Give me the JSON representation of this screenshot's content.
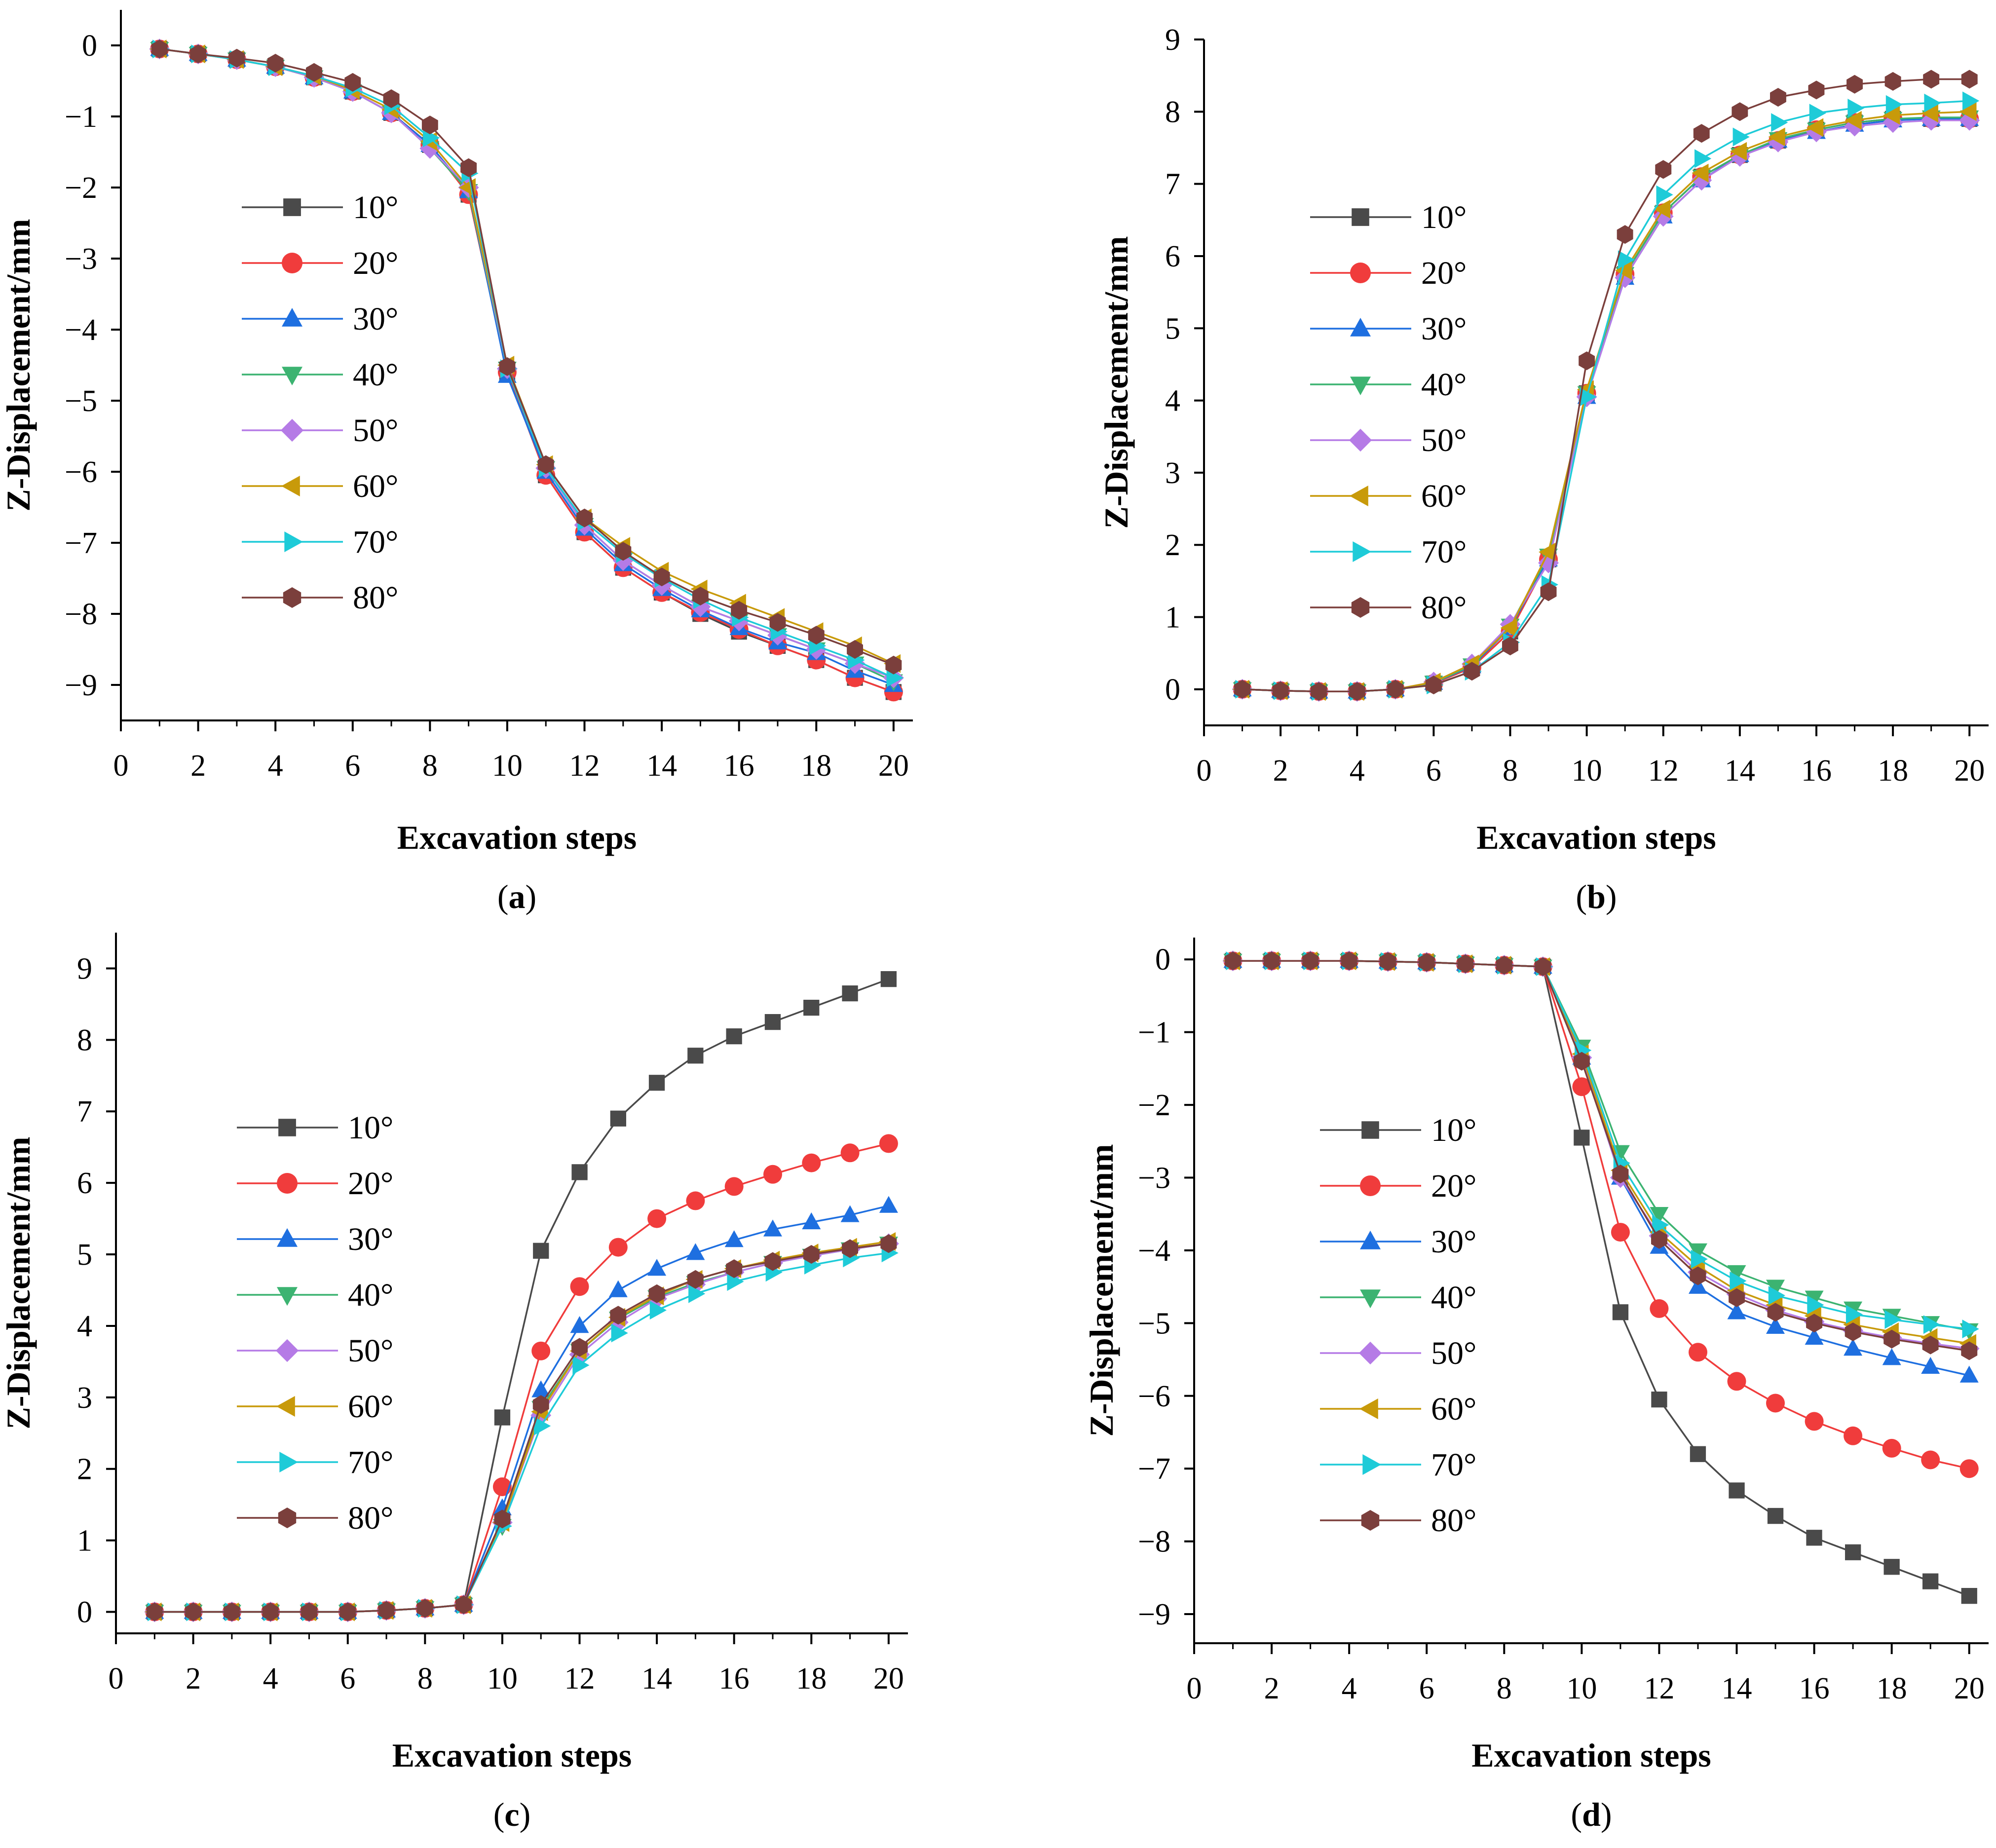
{
  "chart_data": [
    {
      "type": "line",
      "panel_label": "(a)",
      "panel_letter": "a",
      "xlabel": "Excavation steps",
      "ylabel": "Z-Displacement/mm",
      "xlim": [
        0,
        20.5
      ],
      "ylim": [
        -9.5,
        0.5
      ],
      "xticks": [
        0,
        2,
        4,
        6,
        8,
        10,
        12,
        14,
        16,
        18,
        20
      ],
      "yticks": [
        0,
        -1,
        -2,
        -3,
        -4,
        -5,
        -6,
        -7,
        -8,
        -9
      ],
      "ytick_labels": [
        "0",
        "−1",
        "−2",
        "−3",
        "−4",
        "−5",
        "−6",
        "−7",
        "−8",
        "−9"
      ],
      "legend_position": "left",
      "x": [
        1,
        2,
        3,
        4,
        5,
        6,
        7,
        8,
        9,
        10,
        11,
        12,
        13,
        14,
        15,
        16,
        17,
        18,
        19,
        20
      ],
      "series": [
        {
          "name": "10°",
          "values": [
            -0.05,
            -0.12,
            -0.2,
            -0.3,
            -0.45,
            -0.65,
            -0.95,
            -1.4,
            -2.1,
            -4.6,
            -6.05,
            -6.85,
            -7.35,
            -7.7,
            -8.0,
            -8.25,
            -8.45,
            -8.65,
            -8.9,
            -9.1
          ]
        },
        {
          "name": "20°",
          "values": [
            -0.05,
            -0.12,
            -0.2,
            -0.3,
            -0.45,
            -0.65,
            -0.95,
            -1.4,
            -2.1,
            -4.6,
            -6.05,
            -6.85,
            -7.35,
            -7.7,
            -7.98,
            -8.22,
            -8.45,
            -8.65,
            -8.9,
            -9.1
          ]
        },
        {
          "name": "30°",
          "values": [
            -0.05,
            -0.12,
            -0.2,
            -0.3,
            -0.45,
            -0.65,
            -0.95,
            -1.4,
            -2.05,
            -4.65,
            -6.0,
            -6.8,
            -7.3,
            -7.65,
            -7.95,
            -8.2,
            -8.4,
            -8.55,
            -8.8,
            -9.0
          ]
        },
        {
          "name": "40°",
          "values": [
            -0.05,
            -0.12,
            -0.2,
            -0.3,
            -0.45,
            -0.65,
            -0.95,
            -1.45,
            -2.05,
            -4.55,
            -5.95,
            -6.75,
            -7.25,
            -7.6,
            -7.9,
            -8.1,
            -8.3,
            -8.5,
            -8.7,
            -8.95
          ]
        },
        {
          "name": "50°",
          "values": [
            -0.05,
            -0.12,
            -0.2,
            -0.3,
            -0.45,
            -0.65,
            -0.95,
            -1.45,
            -2.0,
            -4.55,
            -5.95,
            -6.75,
            -7.25,
            -7.6,
            -7.9,
            -8.1,
            -8.3,
            -8.5,
            -8.7,
            -8.9
          ]
        },
        {
          "name": "60°",
          "values": [
            -0.05,
            -0.12,
            -0.2,
            -0.3,
            -0.43,
            -0.63,
            -0.9,
            -1.35,
            -2.0,
            -4.5,
            -5.9,
            -6.65,
            -7.05,
            -7.4,
            -7.65,
            -7.85,
            -8.05,
            -8.25,
            -8.45,
            -8.7
          ]
        },
        {
          "name": "70°",
          "values": [
            -0.05,
            -0.12,
            -0.2,
            -0.3,
            -0.43,
            -0.6,
            -0.85,
            -1.3,
            -1.8,
            -4.55,
            -5.95,
            -6.7,
            -7.15,
            -7.5,
            -7.8,
            -8.05,
            -8.25,
            -8.45,
            -8.65,
            -8.9
          ]
        },
        {
          "name": "80°",
          "values": [
            -0.05,
            -0.12,
            -0.18,
            -0.25,
            -0.38,
            -0.52,
            -0.75,
            -1.12,
            -1.72,
            -4.52,
            -5.9,
            -6.65,
            -7.12,
            -7.48,
            -7.75,
            -7.95,
            -8.12,
            -8.3,
            -8.5,
            -8.72
          ]
        }
      ]
    },
    {
      "type": "line",
      "panel_label": "(b)",
      "panel_letter": "b",
      "xlabel": "Excavation steps",
      "ylabel": "Z-Displacement/mm",
      "xlim": [
        0,
        20.5
      ],
      "ylim": [
        -0.5,
        9
      ],
      "xticks": [
        0,
        2,
        4,
        6,
        8,
        10,
        12,
        14,
        16,
        18,
        20
      ],
      "yticks": [
        0,
        1,
        2,
        3,
        4,
        5,
        6,
        7,
        8,
        9
      ],
      "ytick_labels": [
        "0",
        "1",
        "2",
        "3",
        "4",
        "5",
        "6",
        "7",
        "8",
        "9"
      ],
      "legend_position": "left",
      "x": [
        1,
        2,
        3,
        4,
        5,
        6,
        7,
        8,
        9,
        10,
        11,
        12,
        13,
        14,
        15,
        16,
        17,
        18,
        19,
        20
      ],
      "series": [
        {
          "name": "10°",
          "values": [
            0,
            -0.02,
            -0.03,
            -0.03,
            0.0,
            0.08,
            0.3,
            0.8,
            1.8,
            4.1,
            5.75,
            6.6,
            7.1,
            7.4,
            7.6,
            7.75,
            7.85,
            7.9,
            7.9,
            7.9
          ]
        },
        {
          "name": "20°",
          "values": [
            0,
            -0.02,
            -0.03,
            -0.03,
            0.0,
            0.08,
            0.3,
            0.8,
            1.8,
            4.1,
            5.75,
            6.6,
            7.1,
            7.4,
            7.6,
            7.75,
            7.85,
            7.9,
            7.9,
            7.9
          ]
        },
        {
          "name": "30°",
          "values": [
            0,
            -0.02,
            -0.03,
            -0.03,
            0.0,
            0.09,
            0.32,
            0.85,
            1.8,
            4.05,
            5.7,
            6.55,
            7.05,
            7.4,
            7.6,
            7.72,
            7.82,
            7.88,
            7.9,
            7.9
          ]
        },
        {
          "name": "40°",
          "values": [
            0,
            -0.02,
            -0.03,
            -0.03,
            0.0,
            0.09,
            0.33,
            0.88,
            1.85,
            4.1,
            5.75,
            6.6,
            7.1,
            7.4,
            7.62,
            7.75,
            7.85,
            7.9,
            7.92,
            7.92
          ]
        },
        {
          "name": "50°",
          "values": [
            0,
            -0.02,
            -0.03,
            -0.03,
            0.0,
            0.1,
            0.35,
            0.9,
            1.75,
            4.05,
            5.7,
            6.55,
            7.05,
            7.38,
            7.58,
            7.72,
            7.8,
            7.85,
            7.88,
            7.88
          ]
        },
        {
          "name": "60°",
          "values": [
            0,
            -0.02,
            -0.03,
            -0.03,
            0.0,
            0.1,
            0.35,
            0.85,
            1.9,
            4.15,
            5.8,
            6.65,
            7.15,
            7.45,
            7.65,
            7.78,
            7.88,
            7.95,
            7.98,
            8.0
          ]
        },
        {
          "name": "70°",
          "values": [
            0,
            -0.02,
            -0.03,
            -0.03,
            0.0,
            0.06,
            0.25,
            0.65,
            1.45,
            4.05,
            5.95,
            6.85,
            7.35,
            7.65,
            7.85,
            7.98,
            8.05,
            8.1,
            8.12,
            8.15
          ]
        },
        {
          "name": "80°",
          "values": [
            0,
            -0.02,
            -0.03,
            -0.03,
            0.0,
            0.06,
            0.25,
            0.6,
            1.35,
            4.55,
            6.3,
            7.2,
            7.7,
            8.0,
            8.2,
            8.3,
            8.38,
            8.42,
            8.45,
            8.45
          ]
        }
      ]
    },
    {
      "type": "line",
      "panel_label": "(c)",
      "panel_letter": "c",
      "xlabel": "Excavation steps",
      "ylabel": "Z-Displacement/mm",
      "xlim": [
        0,
        20.5
      ],
      "ylim": [
        -0.3,
        9.5
      ],
      "xticks": [
        0,
        2,
        4,
        6,
        8,
        10,
        12,
        14,
        16,
        18,
        20
      ],
      "yticks": [
        0,
        1,
        2,
        3,
        4,
        5,
        6,
        7,
        8,
        9
      ],
      "ytick_labels": [
        "0",
        "1",
        "2",
        "3",
        "4",
        "5",
        "6",
        "7",
        "8",
        "9"
      ],
      "legend_position": "left",
      "x": [
        1,
        2,
        3,
        4,
        5,
        6,
        7,
        8,
        9,
        10,
        11,
        12,
        13,
        14,
        15,
        16,
        17,
        18,
        19,
        20
      ],
      "series": [
        {
          "name": "10°",
          "values": [
            0,
            0,
            0,
            0,
            0,
            0,
            0.02,
            0.05,
            0.1,
            2.72,
            5.05,
            6.15,
            6.9,
            7.4,
            7.78,
            8.05,
            8.25,
            8.45,
            8.65,
            8.85
          ]
        },
        {
          "name": "20°",
          "values": [
            0,
            0,
            0,
            0,
            0,
            0,
            0.02,
            0.05,
            0.1,
            1.75,
            3.65,
            4.55,
            5.1,
            5.5,
            5.75,
            5.95,
            6.12,
            6.28,
            6.42,
            6.55
          ]
        },
        {
          "name": "30°",
          "values": [
            0,
            0,
            0,
            0,
            0,
            0,
            0.02,
            0.05,
            0.1,
            1.45,
            3.1,
            4.0,
            4.5,
            4.8,
            5.02,
            5.2,
            5.35,
            5.45,
            5.55,
            5.68
          ]
        },
        {
          "name": "40°",
          "values": [
            0,
            0,
            0,
            0,
            0,
            0,
            0.02,
            0.05,
            0.1,
            1.2,
            2.85,
            3.65,
            4.1,
            4.4,
            4.6,
            4.75,
            4.88,
            4.98,
            5.07,
            5.15
          ]
        },
        {
          "name": "50°",
          "values": [
            0,
            0,
            0,
            0,
            0,
            0,
            0.02,
            0.05,
            0.1,
            1.25,
            2.75,
            3.6,
            4.05,
            4.38,
            4.58,
            4.75,
            4.88,
            4.98,
            5.07,
            5.15
          ]
        },
        {
          "name": "60°",
          "values": [
            0,
            0,
            0,
            0,
            0,
            0,
            0.02,
            0.05,
            0.1,
            1.25,
            2.8,
            3.65,
            4.12,
            4.42,
            4.65,
            4.8,
            4.92,
            5.02,
            5.1,
            5.18
          ]
        },
        {
          "name": "70°",
          "values": [
            0,
            0,
            0,
            0,
            0,
            0,
            0.02,
            0.05,
            0.1,
            1.2,
            2.6,
            3.45,
            3.9,
            4.22,
            4.45,
            4.62,
            4.75,
            4.85,
            4.95,
            5.02
          ]
        },
        {
          "name": "80°",
          "values": [
            0,
            0,
            0,
            0,
            0,
            0,
            0.02,
            0.05,
            0.1,
            1.3,
            2.9,
            3.7,
            4.15,
            4.45,
            4.65,
            4.8,
            4.9,
            5.0,
            5.08,
            5.15
          ]
        }
      ]
    },
    {
      "type": "line",
      "panel_label": "(d)",
      "panel_letter": "d",
      "xlabel": "Excavation steps",
      "ylabel": "Z-Displacement/mm",
      "xlim": [
        0,
        20.5
      ],
      "ylim": [
        -9.4,
        0.3
      ],
      "xticks": [
        0,
        2,
        4,
        6,
        8,
        10,
        12,
        14,
        16,
        18,
        20
      ],
      "yticks": [
        0,
        -1,
        -2,
        -3,
        -4,
        -5,
        -6,
        -7,
        -8,
        -9
      ],
      "ytick_labels": [
        "0",
        "−1",
        "−2",
        "−3",
        "−4",
        "−5",
        "−6",
        "−7",
        "−8",
        "−9"
      ],
      "legend_position": "left",
      "x": [
        1,
        2,
        3,
        4,
        5,
        6,
        7,
        8,
        9,
        10,
        11,
        12,
        13,
        14,
        15,
        16,
        17,
        18,
        19,
        20
      ],
      "series": [
        {
          "name": "10°",
          "values": [
            -0.02,
            -0.02,
            -0.02,
            -0.02,
            -0.03,
            -0.04,
            -0.06,
            -0.08,
            -0.1,
            -2.45,
            -4.85,
            -6.05,
            -6.8,
            -7.3,
            -7.65,
            -7.95,
            -8.15,
            -8.35,
            -8.55,
            -8.75
          ]
        },
        {
          "name": "20°",
          "values": [
            -0.02,
            -0.02,
            -0.02,
            -0.02,
            -0.03,
            -0.04,
            -0.06,
            -0.08,
            -0.1,
            -1.75,
            -3.75,
            -4.8,
            -5.4,
            -5.8,
            -6.1,
            -6.35,
            -6.55,
            -6.72,
            -6.88,
            -7.0
          ]
        },
        {
          "name": "30°",
          "values": [
            -0.02,
            -0.02,
            -0.02,
            -0.02,
            -0.03,
            -0.04,
            -0.06,
            -0.08,
            -0.1,
            -1.35,
            -3.0,
            -3.95,
            -4.5,
            -4.85,
            -5.05,
            -5.2,
            -5.35,
            -5.48,
            -5.6,
            -5.72
          ]
        },
        {
          "name": "40°",
          "values": [
            -0.02,
            -0.02,
            -0.02,
            -0.02,
            -0.03,
            -0.04,
            -0.06,
            -0.08,
            -0.1,
            -1.2,
            -2.65,
            -3.5,
            -4.0,
            -4.3,
            -4.5,
            -4.65,
            -4.8,
            -4.9,
            -5.0,
            -5.1
          ]
        },
        {
          "name": "50°",
          "values": [
            -0.02,
            -0.02,
            -0.02,
            -0.02,
            -0.03,
            -0.04,
            -0.06,
            -0.08,
            -0.1,
            -1.35,
            -3.0,
            -3.8,
            -4.3,
            -4.6,
            -4.82,
            -4.98,
            -5.1,
            -5.2,
            -5.28,
            -5.35
          ]
        },
        {
          "name": "60°",
          "values": [
            -0.02,
            -0.02,
            -0.02,
            -0.02,
            -0.03,
            -0.04,
            -0.06,
            -0.08,
            -0.1,
            -1.3,
            -2.9,
            -3.75,
            -4.22,
            -4.55,
            -4.75,
            -4.9,
            -5.02,
            -5.12,
            -5.2,
            -5.28
          ]
        },
        {
          "name": "70°",
          "values": [
            -0.02,
            -0.02,
            -0.02,
            -0.02,
            -0.03,
            -0.04,
            -0.06,
            -0.08,
            -0.1,
            -1.25,
            -2.8,
            -3.65,
            -4.12,
            -4.42,
            -4.62,
            -4.75,
            -4.88,
            -4.95,
            -5.02,
            -5.08
          ]
        },
        {
          "name": "80°",
          "values": [
            -0.02,
            -0.02,
            -0.02,
            -0.02,
            -0.03,
            -0.04,
            -0.06,
            -0.08,
            -0.1,
            -1.4,
            -2.95,
            -3.85,
            -4.35,
            -4.65,
            -4.85,
            -5.0,
            -5.12,
            -5.22,
            -5.3,
            -5.38
          ]
        }
      ]
    }
  ],
  "series_styles": [
    {
      "marker": "square",
      "color": "#4a4a4a"
    },
    {
      "marker": "circle",
      "color": "#f03c3c"
    },
    {
      "marker": "triangle-up",
      "color": "#1e6fe0"
    },
    {
      "marker": "triangle-down",
      "color": "#3cb371"
    },
    {
      "marker": "diamond",
      "color": "#b57be6"
    },
    {
      "marker": "triangle-left",
      "color": "#c89a0a"
    },
    {
      "marker": "triangle-right",
      "color": "#1ecbd8"
    },
    {
      "marker": "hexagon",
      "color": "#7b3f3c"
    }
  ]
}
